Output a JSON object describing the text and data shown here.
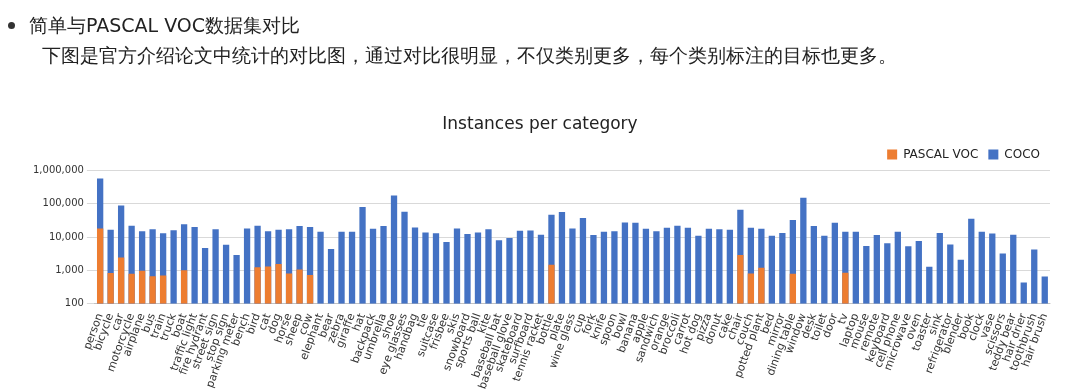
{
  "chart_data": {
    "type": "bar",
    "title": "简单与PASCAL VOC数据集对比",
    "subtitle": "下图是官方介绍论文中统计的对比图，通过对比很明显，不仅类别更多，每个类别标注的目标也更多。",
    "annotations": [
      "Instances per category"
    ],
    "categories": [
      "person",
      "bicycle",
      "car",
      "motorcycle",
      "airplane",
      "bus",
      "train",
      "truck",
      "boat",
      "traffic light",
      "fire hydrant",
      "street sign",
      "stop sign",
      "parking meter",
      "bench",
      "bird",
      "cat",
      "dog",
      "horse",
      "sheep",
      "cow",
      "elephant",
      "bear",
      "zebra",
      "giraffe",
      "hat",
      "backpack",
      "umbrella",
      "shoe",
      "eye glasses",
      "handbag",
      "tie",
      "suitcase",
      "frisbee",
      "skis",
      "snowboard",
      "sports ball",
      "kite",
      "baseball bat",
      "baseball glove",
      "skateboard",
      "surfboard",
      "tennis racket",
      "bottle",
      "plate",
      "wine glass",
      "cup",
      "fork",
      "knife",
      "spoon",
      "bowl",
      "banana",
      "apple",
      "sandwich",
      "orange",
      "broccoli",
      "carrot",
      "hot dog",
      "pizza",
      "donut",
      "cake",
      "chair",
      "couch",
      "potted plant",
      "bed",
      "mirror",
      "dining table",
      "window",
      "desk",
      "toilet",
      "door",
      "tv",
      "laptop",
      "mouse",
      "remote",
      "keyboard",
      "cell phone",
      "microwave",
      "oven",
      "toaster",
      "sink",
      "refrigerator",
      "blender",
      "book",
      "clock",
      "vase",
      "scissors",
      "teddy bear",
      "hair drier",
      "toothbrush",
      "hair brush"
    ],
    "series": [
      {
        "name": "COCO",
        "color": "#4472c4",
        "values": [
          570000,
          16500,
          89000,
          22000,
          15000,
          17000,
          13000,
          16000,
          24000,
          20000,
          4700,
          17000,
          5900,
          2900,
          18000,
          22000,
          14800,
          16500,
          17000,
          21500,
          20000,
          14500,
          4400,
          14500,
          14500,
          80000,
          17800,
          21500,
          178000,
          57000,
          19500,
          13700,
          13000,
          7100,
          18000,
          12400,
          13700,
          17000,
          8000,
          9400,
          15400,
          15800,
          11800,
          47000,
          56000,
          18000,
          37000,
          11500,
          14500,
          15000,
          27500,
          27000,
          17800,
          15000,
          19000,
          22000,
          19000,
          11000,
          17800,
          17000,
          16500,
          66000,
          19000,
          17800,
          11000,
          13300,
          32500,
          152000,
          21500,
          11000,
          27000,
          14500,
          14500,
          5400,
          11500,
          6500,
          14500,
          5300,
          7600,
          1280,
          13300,
          6000,
          2100,
          35500,
          14500,
          12700,
          3200,
          11800,
          430,
          4200,
          650
        ]
      },
      {
        "name": "PASCAL VOC",
        "color": "#ed7d31",
        "values": [
          18000,
          830,
          2450,
          790,
          970,
          670,
          700,
          null,
          1000,
          null,
          null,
          null,
          null,
          null,
          null,
          1250,
          1300,
          1550,
          800,
          1060,
          730,
          null,
          null,
          null,
          null,
          null,
          null,
          null,
          null,
          null,
          null,
          null,
          null,
          null,
          null,
          null,
          null,
          null,
          null,
          null,
          null,
          null,
          null,
          1470,
          null,
          null,
          null,
          null,
          null,
          null,
          null,
          null,
          null,
          null,
          null,
          null,
          null,
          null,
          null,
          null,
          null,
          2900,
          800,
          1200,
          null,
          null,
          790,
          null,
          null,
          null,
          null,
          850,
          null,
          null,
          null,
          null,
          null,
          null,
          null,
          null,
          null,
          null,
          null,
          null,
          null,
          null,
          null,
          null,
          null,
          null,
          null
        ]
      }
    ],
    "log": "y",
    "ylim": [
      100,
      1000000
    ],
    "yticks": [
      {
        "value": 100,
        "label": "100"
      },
      {
        "value": 1000,
        "label": "1,000"
      },
      {
        "value": 10000,
        "label": "10,000"
      },
      {
        "value": 100000,
        "label": "100,000"
      },
      {
        "value": 1000000,
        "label": "1,000,000"
      }
    ],
    "grid": "y",
    "legend": "top right"
  }
}
